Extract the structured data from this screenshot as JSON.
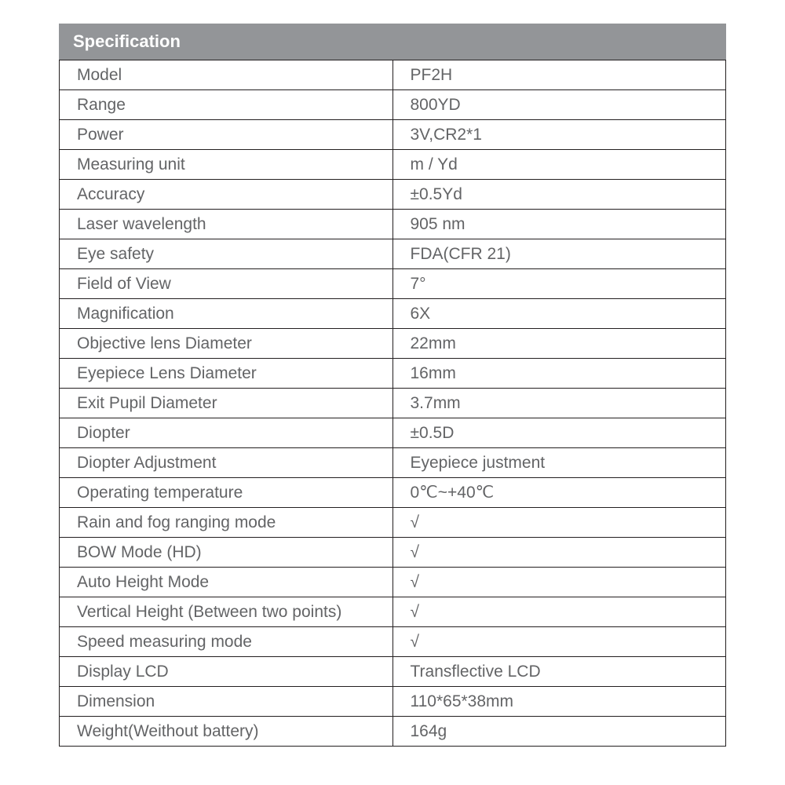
{
  "table": {
    "title": "Specification",
    "header_bg": "#939598",
    "header_text_color": "#ffffff",
    "header_fontsize": 22,
    "header_fontweight": "bold",
    "cell_text_color": "#636466",
    "cell_fontsize": 21,
    "border_color": "#231f20",
    "background_color": "#ffffff",
    "column_widths": [
      "50%",
      "50%"
    ],
    "rows": [
      {
        "label": "Model",
        "value": "PF2H"
      },
      {
        "label": "Range",
        "value": "800YD"
      },
      {
        "label": "Power",
        "value": "3V,CR2*1"
      },
      {
        "label": "Measuring unit",
        "value": "m / Yd"
      },
      {
        "label": "Accuracy",
        "value": "±0.5Yd"
      },
      {
        "label": "Laser wavelength",
        "value": "905 nm"
      },
      {
        "label": "Eye safety",
        "value": "FDA(CFR 21)"
      },
      {
        "label": "Field of View",
        "value": "7°"
      },
      {
        "label": "Magnification",
        "value": "6X"
      },
      {
        "label": "Objective lens Diameter",
        "value": "22mm"
      },
      {
        "label": "Eyepiece Lens Diameter",
        "value": "16mm"
      },
      {
        "label": "Exit Pupil Diameter",
        "value": "3.7mm"
      },
      {
        "label": "Diopter",
        "value": "±0.5D"
      },
      {
        "label": "Diopter Adjustment",
        "value": "Eyepiece justment"
      },
      {
        "label": "Operating temperature",
        "value": "0℃~+40℃"
      },
      {
        "label": "Rain and fog ranging mode",
        "value": "√"
      },
      {
        "label": "BOW Mode (HD)",
        "value": "√"
      },
      {
        "label": "Auto Height Mode",
        "value": "√"
      },
      {
        "label": "Vertical Height (Between two points)",
        "value": "√"
      },
      {
        "label": "Speed measuring mode",
        "value": "√"
      },
      {
        "label": "Display LCD",
        "value": "Transflective LCD"
      },
      {
        "label": "Dimension",
        "value": "110*65*38mm"
      },
      {
        "label": "Weight(Weithout battery)",
        "value": "164g"
      }
    ]
  }
}
